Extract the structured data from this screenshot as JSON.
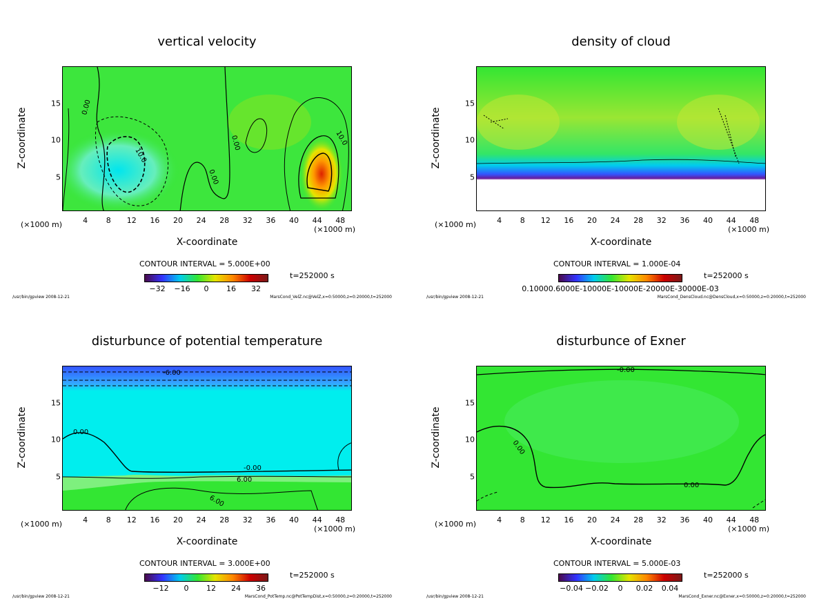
{
  "colors": {
    "plot_green": "#33e633",
    "cyan": "#00e5ee",
    "blue": "#3355ff",
    "purple": "#6a1b9a",
    "orange": "#ff9900",
    "red": "#dd2200",
    "yellow": "#e5e500"
  },
  "chart_data": [
    {
      "type": "heatmap",
      "title": "vertical velocity",
      "xlabel": "X-coordinate",
      "ylabel": "Z-coordinate",
      "x_unit_left": "(×1000 m)",
      "x_unit_right": "(×1000 m)",
      "xlim": [
        0,
        50
      ],
      "ylim": [
        0,
        20
      ],
      "xticks": [
        "4",
        "8",
        "12",
        "16",
        "20",
        "24",
        "28",
        "32",
        "36",
        "40",
        "44",
        "48"
      ],
      "yticks": [
        "5",
        "10",
        "15"
      ],
      "contour_labels": [
        "0.00",
        "10.0",
        "10.0",
        "0.00",
        "0.00",
        "10.0"
      ],
      "contour_interval": "CONTOUR INTERVAL = 5.000E+00",
      "colorbar_ticks": [
        "−32",
        "−16",
        "0",
        "16",
        "32"
      ],
      "time": "t=252000 s",
      "footer_left": "/usr/bin/gpview  2008-12-21",
      "footer_right": "MarsCond_VelZ.nc@VelZ,x=0:50000,z=0:20000,t=252000"
    },
    {
      "type": "heatmap",
      "title": "density of cloud",
      "xlabel": "X-coordinate",
      "ylabel": "Z-coordinate",
      "x_unit_left": "(×1000 m)",
      "x_unit_right": "(×1000 m)",
      "xlim": [
        0,
        50
      ],
      "ylim": [
        0,
        20
      ],
      "xticks": [
        "4",
        "8",
        "12",
        "16",
        "20",
        "24",
        "28",
        "32",
        "36",
        "40",
        "44",
        "48"
      ],
      "yticks": [
        "5",
        "10",
        "15"
      ],
      "contour_interval": "CONTOUR INTERVAL = 1.000E-04",
      "colorbar_ticks": [
        "0.10000.6000E-10000E-10000E-20000E-30000E-03"
      ],
      "time": "t=252000 s",
      "footer_left": "/usr/bin/gpview  2008-12-21",
      "footer_right": "MarsCond_DensCloud.nc@DensCloud,x=0:50000,z=0:20000,t=252000"
    },
    {
      "type": "heatmap",
      "title": "disturbunce of potential temperature",
      "xlabel": "X-coordinate",
      "ylabel": "Z-coordinate",
      "x_unit_left": "(×1000 m)",
      "x_unit_right": "(×1000 m)",
      "xlim": [
        0,
        50
      ],
      "ylim": [
        0,
        20
      ],
      "xticks": [
        "4",
        "8",
        "12",
        "16",
        "20",
        "24",
        "28",
        "32",
        "36",
        "40",
        "44",
        "48"
      ],
      "yticks": [
        "5",
        "10",
        "15"
      ],
      "contour_labels": [
        "-6.00",
        "0.00",
        "-0.00",
        "6.00",
        "6.00"
      ],
      "contour_interval": "CONTOUR INTERVAL = 3.000E+00",
      "colorbar_ticks": [
        "−12",
        "0",
        "12",
        "24",
        "36"
      ],
      "time": "t=252000 s",
      "footer_left": "/usr/bin/gpview  2008-12-21",
      "footer_right": "MarsCond_PotTemp.nc@PotTempDist,x=0:50000,z=0:20000,t=252000"
    },
    {
      "type": "heatmap",
      "title": "disturbunce of Exner",
      "xlabel": "X-coordinate",
      "ylabel": "Z-coordinate",
      "x_unit_left": "(×1000 m)",
      "x_unit_right": "(×1000 m)",
      "xlim": [
        0,
        50
      ],
      "ylim": [
        0,
        20
      ],
      "xticks": [
        "4",
        "8",
        "12",
        "16",
        "20",
        "24",
        "28",
        "32",
        "36",
        "40",
        "44",
        "48"
      ],
      "yticks": [
        "5",
        "10",
        "15"
      ],
      "contour_labels": [
        "-0.00",
        "0.00",
        "0.00"
      ],
      "contour_interval": "CONTOUR INTERVAL = 5.000E-03",
      "colorbar_ticks": [
        "−0.04",
        "−0.02",
        "0",
        "0.02",
        "0.04"
      ],
      "time": "t=252000 s",
      "footer_left": "/usr/bin/gpview  2008-12-21",
      "footer_right": "MarsCond_Exner.nc@Exner,x=0:50000,z=0:20000,t=252000"
    }
  ]
}
